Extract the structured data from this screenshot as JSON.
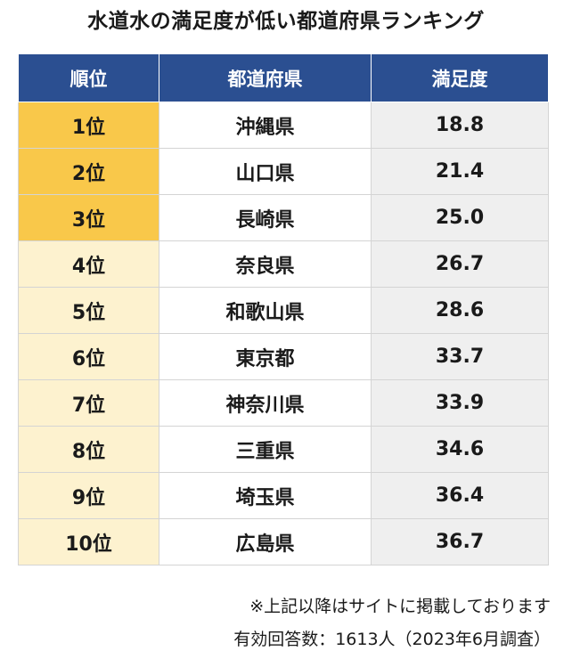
{
  "title": "水道水の満足度が低い都道府県ランキング",
  "table": {
    "headers": [
      "順位",
      "都道府県",
      "満足度"
    ],
    "rows": [
      {
        "rank": "1位",
        "prefecture": "沖縄県",
        "score": "18.8"
      },
      {
        "rank": "2位",
        "prefecture": "山口県",
        "score": "21.4"
      },
      {
        "rank": "3位",
        "prefecture": "長崎県",
        "score": "25.0"
      },
      {
        "rank": "4位",
        "prefecture": "奈良県",
        "score": "26.7"
      },
      {
        "rank": "5位",
        "prefecture": "和歌山県",
        "score": "28.6"
      },
      {
        "rank": "6位",
        "prefecture": "東京都",
        "score": "33.7"
      },
      {
        "rank": "7位",
        "prefecture": "神奈川県",
        "score": "33.9"
      },
      {
        "rank": "8位",
        "prefecture": "三重県",
        "score": "34.6"
      },
      {
        "rank": "9位",
        "prefecture": "埼玉県",
        "score": "36.4"
      },
      {
        "rank": "10位",
        "prefecture": "広島県",
        "score": "36.7"
      }
    ]
  },
  "notes": {
    "line1": "※上記以降はサイトに掲載しております",
    "line2": "有効回答数：1613人（2023年6月調査）"
  },
  "colors": {
    "header_bg": "#2b4f91",
    "rank_top3_bg": "#f9c84a",
    "rank_other_bg": "#fdf2cf",
    "score_bg": "#efefef"
  }
}
